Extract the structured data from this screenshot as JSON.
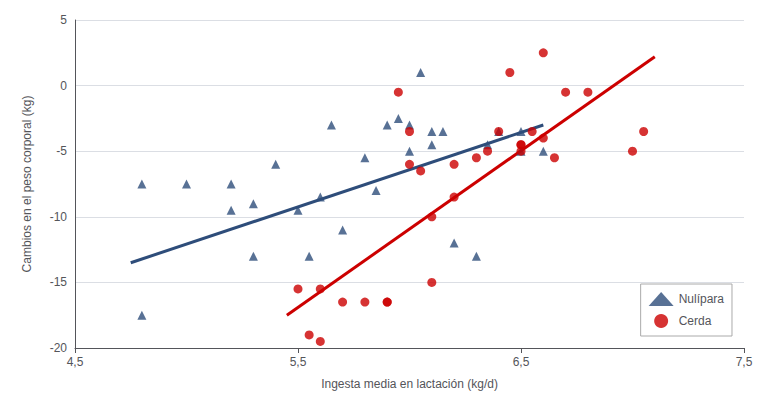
{
  "chart_data": {
    "type": "scatter",
    "xlabel": "Ingesta media en lactación (kg/d)",
    "ylabel": "Cambios en el peso corporal (kg)",
    "xlim": [
      4.5,
      7.5
    ],
    "xticks": [
      {
        "value": 4.5,
        "label": "4,5"
      },
      {
        "value": 5.5,
        "label": "5,5"
      },
      {
        "value": 6.5,
        "label": "6,5"
      },
      {
        "value": 7.5,
        "label": "7,5"
      }
    ],
    "ylim": [
      -20,
      5
    ],
    "yticks": [
      -20,
      -15,
      -10,
      -5,
      0,
      5
    ],
    "grid": true,
    "legend": "lower right",
    "series": [
      {
        "name": "Nulípara",
        "type": "scatter",
        "color": "#2e4d7a",
        "marker": "triangle",
        "x": [
          4.8,
          4.8,
          5.0,
          5.2,
          5.2,
          5.3,
          5.3,
          5.4,
          5.5,
          5.55,
          5.6,
          5.65,
          5.7,
          5.8,
          5.85,
          5.9,
          5.95,
          6.0,
          6.0,
          6.05,
          6.1,
          6.1,
          6.15,
          6.2,
          6.3,
          6.35,
          6.4,
          6.5,
          6.5,
          6.6
        ],
        "values": [
          -17.5,
          -7.5,
          -7.5,
          -9.5,
          -7.5,
          -9.0,
          -13.0,
          -6.0,
          -9.5,
          -13.0,
          -8.5,
          -3.0,
          -11.0,
          -5.5,
          -8.0,
          -3.0,
          -2.5,
          -5.0,
          -3.0,
          1.0,
          -3.5,
          -4.5,
          -3.5,
          -12.0,
          -13.0,
          -4.5,
          -3.5,
          -5.0,
          -3.5,
          -5.0
        ]
      },
      {
        "name": "Cerda",
        "type": "scatter",
        "color": "#cc0000",
        "marker": "circle",
        "x": [
          5.5,
          5.55,
          5.6,
          5.6,
          5.7,
          5.8,
          5.9,
          5.9,
          5.95,
          6.0,
          6.0,
          6.05,
          6.1,
          6.1,
          6.2,
          6.2,
          6.3,
          6.35,
          6.4,
          6.45,
          6.5,
          6.5,
          6.5,
          6.55,
          6.6,
          6.6,
          6.65,
          6.7,
          6.8,
          7.0,
          7.05
        ],
        "values": [
          -15.5,
          -19.0,
          -19.5,
          -15.5,
          -16.5,
          -16.5,
          -16.5,
          -16.5,
          -0.5,
          -6.0,
          -3.5,
          -6.5,
          -10.0,
          -15.0,
          -6.0,
          -8.5,
          -5.5,
          -5.0,
          -3.5,
          1.0,
          -4.5,
          -5.0,
          -4.5,
          -3.5,
          -4.0,
          2.5,
          -5.5,
          -0.5,
          -0.5,
          -5.0,
          -3.5
        ]
      },
      {
        "type": "line",
        "color": "#2e4d7a",
        "x": [
          4.75,
          6.6
        ],
        "values": [
          -13.5,
          -3.0
        ]
      },
      {
        "type": "line",
        "color": "#cc0000",
        "x": [
          5.45,
          7.1
        ],
        "values": [
          -17.5,
          2.2
        ]
      }
    ]
  }
}
